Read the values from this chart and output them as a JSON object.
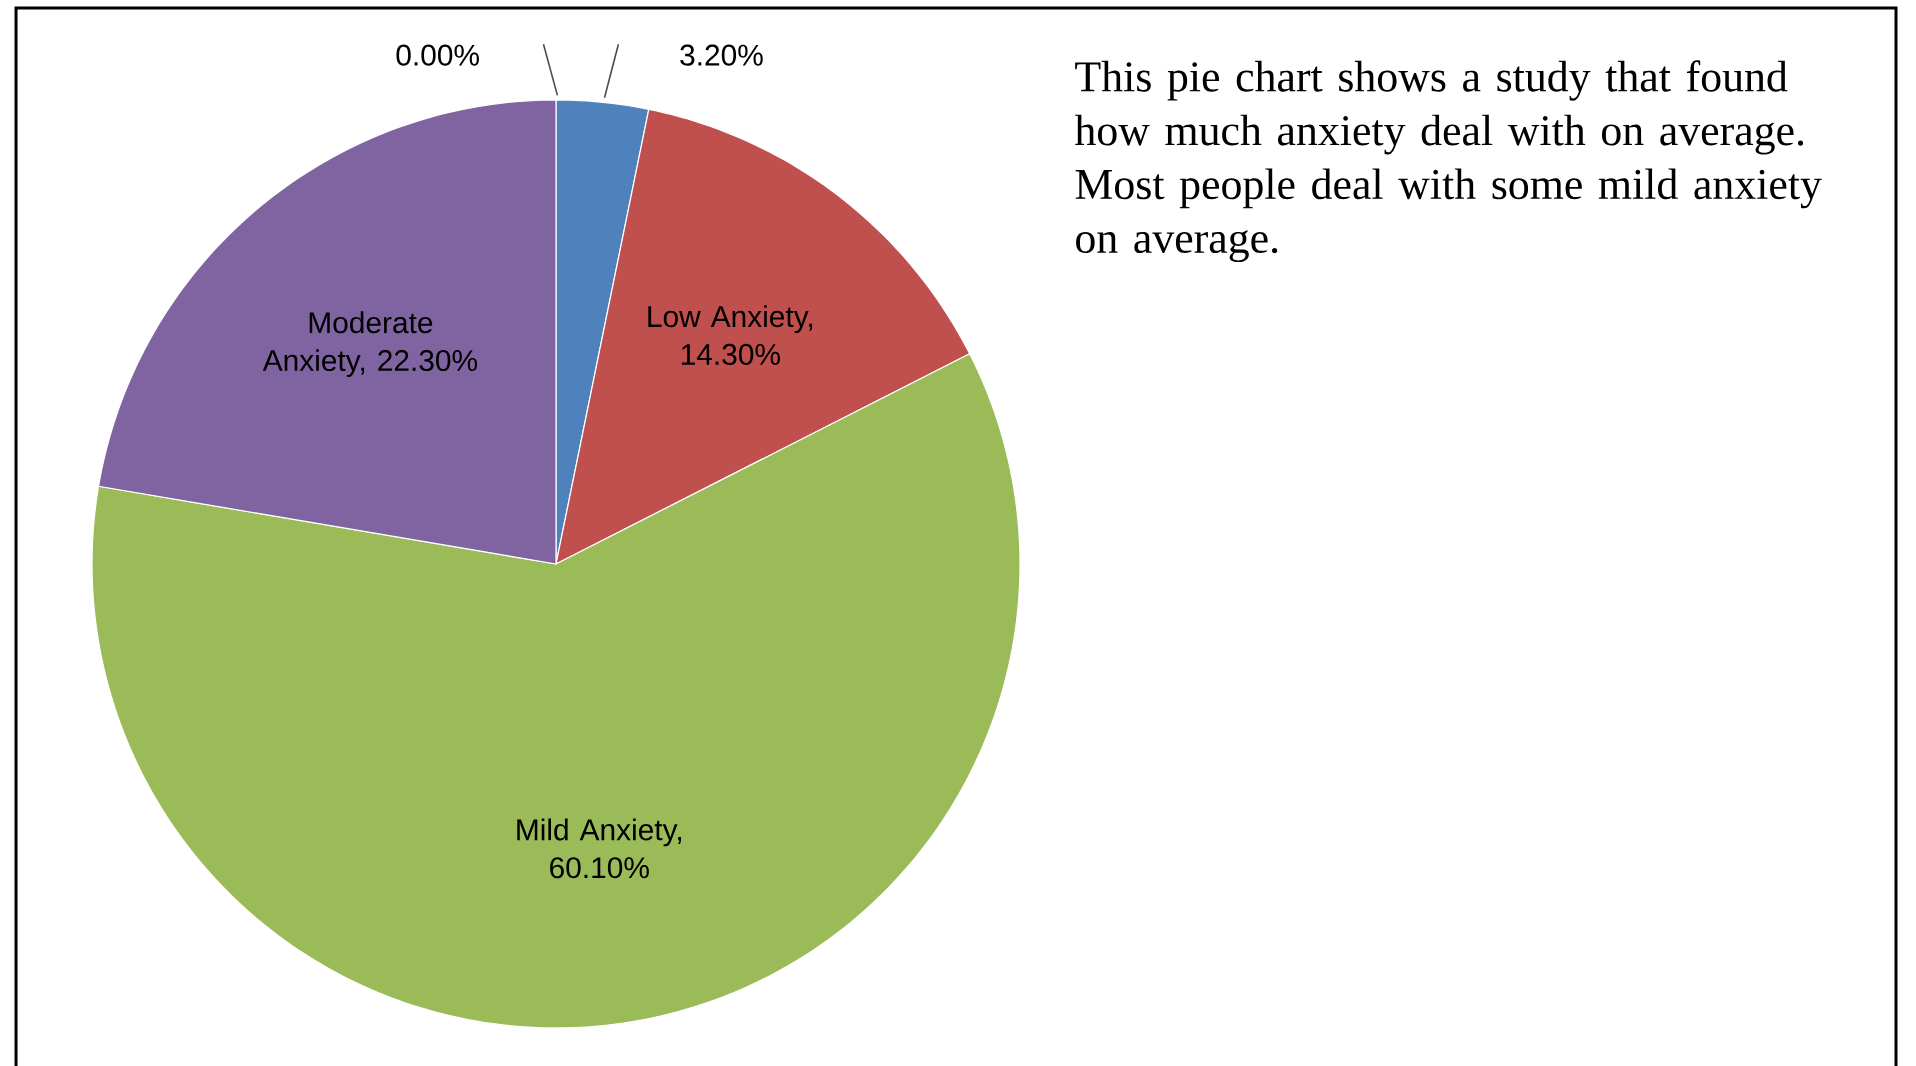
{
  "chart_data": {
    "type": "pie",
    "categories": [
      null,
      null,
      null,
      null,
      null
    ],
    "values": [
      3.2,
      14.3,
      60.1,
      22.3,
      0.0
    ],
    "value_labels": [
      "3.20%",
      "Low Anxiety, 14.30%",
      "Mild Anxiety, 60.10%",
      "Moderate Anxiety, 22.30%",
      "0.00%"
    ],
    "colors": [
      "#4f81bd",
      "#c0504d",
      "#9bbb59",
      "#8064a2",
      "#4bacc6"
    ],
    "annotations": [
      "This pie chart shows a study that found how much anxiety deal with on average. Most people deal with some mild anxiety on average."
    ]
  }
}
